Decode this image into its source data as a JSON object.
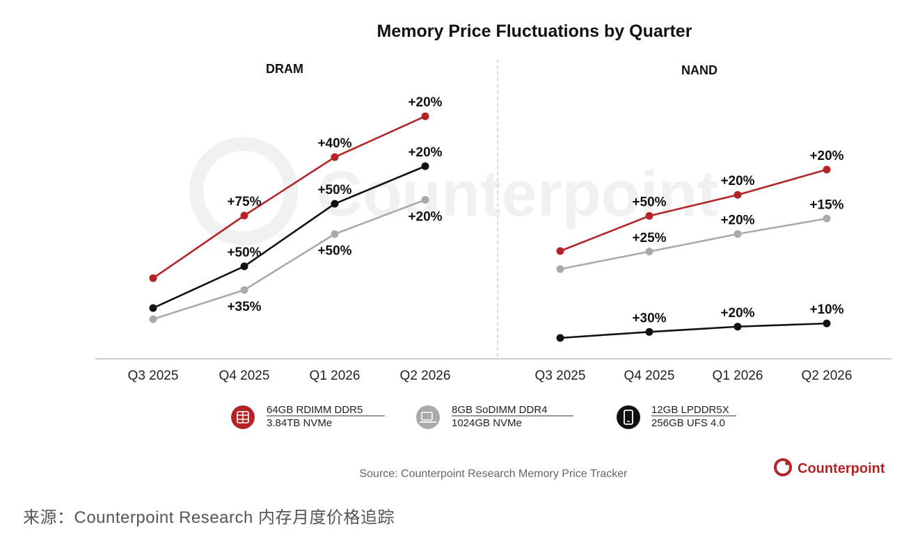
{
  "colors": {
    "red": "#b32427",
    "black": "#111111",
    "gray": "#aaaaaa",
    "axis": "#bbbbbb",
    "divider": "#c8c8c8"
  },
  "title": "Memory Price Fluctuations by Quarter",
  "source": "Source: Counterpoint Research Memory Price Tracker",
  "brand": "Counterpoint",
  "watermark_text": "Counterpoint",
  "caption": "来源：Counterpoint Research 内存月度价格追踪",
  "legend": [
    {
      "line1": "64GB RDIMM DDR5",
      "line2": "3.84TB NVMe",
      "color": "#b32427",
      "icon": "server-memory-icon"
    },
    {
      "line1": "8GB SoDIMM DDR4",
      "line2": "1024GB NVMe",
      "color": "#aaaaaa",
      "icon": "laptop-memory-icon"
    },
    {
      "line1": "12GB LPDDR5X",
      "line2": "256GB UFS 4.0",
      "color": "#111111",
      "icon": "smartphone-icon"
    }
  ],
  "chart_data": [
    {
      "type": "line",
      "title": "DRAM",
      "categories": [
        "Q3 2025",
        "Q4 2025",
        "Q1 2026",
        "Q2 2026"
      ],
      "grid": false,
      "series": [
        {
          "key": "red",
          "color": "#b32427",
          "values": [
            100,
            175,
            245,
            294
          ],
          "labels": [
            "",
            "+75%",
            "+40%",
            "+20%"
          ],
          "label_pos": "above"
        },
        {
          "key": "black",
          "color": "#111111",
          "values": [
            100,
            150,
            225,
            270
          ],
          "labels": [
            "",
            "+50%",
            "+50%",
            "+20%"
          ],
          "label_pos": "above"
        },
        {
          "key": "gray",
          "color": "#aaaaaa",
          "values": [
            100,
            135,
            202,
            243
          ],
          "labels": [
            "",
            "+35%",
            "+50%",
            "+20%"
          ],
          "label_pos": "below"
        }
      ]
    },
    {
      "type": "line",
      "title": "NAND",
      "categories": [
        "Q3 2025",
        "Q4 2025",
        "Q1 2026",
        "Q2 2026"
      ],
      "grid": false,
      "series": [
        {
          "key": "red",
          "color": "#b32427",
          "values": [
            100,
            150,
            180,
            216
          ],
          "labels": [
            "",
            "+50%",
            "+20%",
            "+20%"
          ],
          "label_pos": "above"
        },
        {
          "key": "gray",
          "color": "#aaaaaa",
          "values": [
            100,
            125,
            150,
            172
          ],
          "labels": [
            "",
            "+25%",
            "+20%",
            "+15%"
          ],
          "label_pos": "above"
        },
        {
          "key": "black",
          "color": "#111111",
          "values": [
            100,
            130,
            156,
            172
          ],
          "labels": [
            "",
            "+30%",
            "+20%",
            "+10%"
          ],
          "label_pos": "above"
        }
      ]
    }
  ]
}
